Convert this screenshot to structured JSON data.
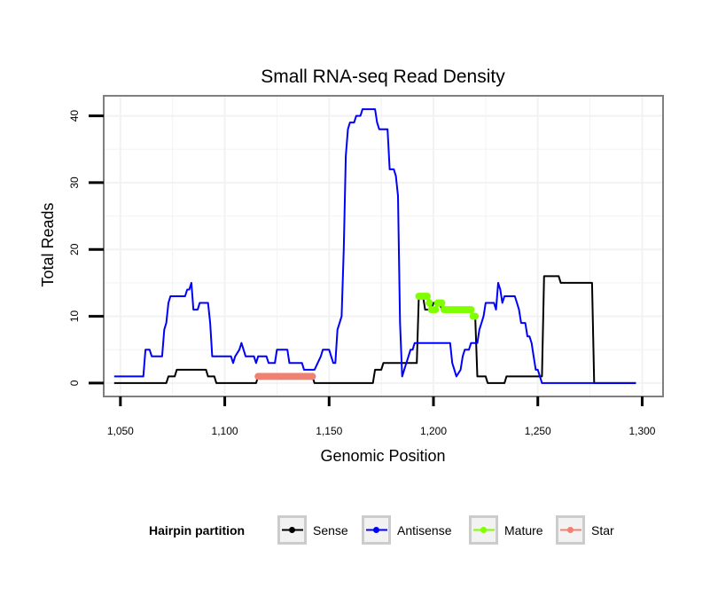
{
  "chart_data": {
    "type": "line",
    "title": "Small RNA-seq Read Density",
    "xlabel": "Genomic Position",
    "ylabel": "Total Reads",
    "xlim": [
      1042,
      1310
    ],
    "ylim": [
      -2,
      43
    ],
    "x_ticks": [
      1050,
      1100,
      1150,
      1200,
      1250,
      1300
    ],
    "x_tick_labels": [
      "1,050",
      "1,100",
      "1,150",
      "1,200",
      "1,250",
      "1,300"
    ],
    "y_ticks": [
      0,
      10,
      20,
      30,
      40
    ],
    "y_tick_labels": [
      "0",
      "10",
      "20",
      "30",
      "40"
    ],
    "grid": true,
    "legend": {
      "title": "Hairpin partition",
      "position": "bottom",
      "entries": [
        "Sense",
        "Antisense",
        "Mature",
        "Star"
      ]
    },
    "series": [
      {
        "name": "Sense",
        "color": "#000000",
        "points": [
          [
            1047,
            0
          ],
          [
            1072,
            0
          ],
          [
            1073,
            1
          ],
          [
            1076,
            1
          ],
          [
            1077,
            2
          ],
          [
            1091,
            2
          ],
          [
            1092,
            1
          ],
          [
            1095,
            1
          ],
          [
            1096,
            0
          ],
          [
            1115,
            0
          ],
          [
            1116,
            1
          ],
          [
            1142,
            1
          ],
          [
            1143,
            0
          ],
          [
            1171,
            0
          ],
          [
            1172,
            2
          ],
          [
            1175,
            2
          ],
          [
            1176,
            3
          ],
          [
            1192,
            3
          ],
          [
            1193,
            13
          ],
          [
            1195,
            13
          ],
          [
            1196,
            11
          ],
          [
            1199,
            11
          ],
          [
            1200,
            12
          ],
          [
            1203,
            12
          ],
          [
            1204,
            11
          ],
          [
            1218,
            11
          ],
          [
            1219,
            10
          ],
          [
            1220,
            10
          ],
          [
            1221,
            1
          ],
          [
            1225,
            1
          ],
          [
            1226,
            0
          ],
          [
            1234,
            0
          ],
          [
            1235,
            1
          ],
          [
            1252,
            1
          ],
          [
            1253,
            16
          ],
          [
            1260,
            16
          ],
          [
            1261,
            15
          ],
          [
            1276,
            15
          ],
          [
            1277,
            0
          ],
          [
            1297,
            0
          ]
        ]
      },
      {
        "name": "Antisense",
        "color": "#0000ff",
        "points": [
          [
            1047,
            1
          ],
          [
            1061,
            1
          ],
          [
            1062,
            5
          ],
          [
            1064,
            5
          ],
          [
            1065,
            4
          ],
          [
            1070,
            4
          ],
          [
            1071,
            8
          ],
          [
            1072,
            9
          ],
          [
            1073,
            12
          ],
          [
            1074,
            13
          ],
          [
            1081,
            13
          ],
          [
            1082,
            14
          ],
          [
            1083,
            14
          ],
          [
            1084,
            15
          ],
          [
            1085,
            11
          ],
          [
            1087,
            11
          ],
          [
            1088,
            12
          ],
          [
            1092,
            12
          ],
          [
            1093,
            9
          ],
          [
            1094,
            4
          ],
          [
            1103,
            4
          ],
          [
            1104,
            3
          ],
          [
            1105,
            4
          ],
          [
            1107,
            5
          ],
          [
            1108,
            6
          ],
          [
            1109,
            5
          ],
          [
            1110,
            4
          ],
          [
            1114,
            4
          ],
          [
            1115,
            3
          ],
          [
            1116,
            4
          ],
          [
            1120,
            4
          ],
          [
            1121,
            3
          ],
          [
            1124,
            3
          ],
          [
            1125,
            5
          ],
          [
            1130,
            5
          ],
          [
            1131,
            3
          ],
          [
            1137,
            3
          ],
          [
            1138,
            2
          ],
          [
            1143,
            2
          ],
          [
            1146,
            4
          ],
          [
            1147,
            5
          ],
          [
            1150,
            5
          ],
          [
            1151,
            4
          ],
          [
            1152,
            3
          ],
          [
            1153,
            3
          ],
          [
            1154,
            8
          ],
          [
            1155,
            9
          ],
          [
            1156,
            10
          ],
          [
            1157,
            20
          ],
          [
            1158,
            34
          ],
          [
            1159,
            38
          ],
          [
            1160,
            39
          ],
          [
            1162,
            39
          ],
          [
            1163,
            40
          ],
          [
            1165,
            40
          ],
          [
            1166,
            41
          ],
          [
            1172,
            41
          ],
          [
            1173,
            39
          ],
          [
            1174,
            38
          ],
          [
            1178,
            38
          ],
          [
            1179,
            32
          ],
          [
            1181,
            32
          ],
          [
            1182,
            31
          ],
          [
            1183,
            28
          ],
          [
            1184,
            9
          ],
          [
            1185,
            1
          ],
          [
            1186,
            2
          ],
          [
            1187,
            3
          ],
          [
            1188,
            4
          ],
          [
            1189,
            5
          ],
          [
            1190,
            5
          ],
          [
            1191,
            6
          ],
          [
            1208,
            6
          ],
          [
            1209,
            3
          ],
          [
            1210,
            2
          ],
          [
            1211,
            1
          ],
          [
            1213,
            2
          ],
          [
            1214,
            4
          ],
          [
            1215,
            5
          ],
          [
            1217,
            5
          ],
          [
            1218,
            6
          ],
          [
            1221,
            6
          ],
          [
            1222,
            8
          ],
          [
            1223,
            9
          ],
          [
            1224,
            10
          ],
          [
            1225,
            12
          ],
          [
            1229,
            12
          ],
          [
            1230,
            11
          ],
          [
            1231,
            15
          ],
          [
            1232,
            14
          ],
          [
            1233,
            12
          ],
          [
            1234,
            13
          ],
          [
            1239,
            13
          ],
          [
            1240,
            12
          ],
          [
            1241,
            11
          ],
          [
            1242,
            9
          ],
          [
            1244,
            9
          ],
          [
            1245,
            7
          ],
          [
            1246,
            7
          ],
          [
            1247,
            6
          ],
          [
            1248,
            4
          ],
          [
            1249,
            2
          ],
          [
            1250,
            2
          ],
          [
            1251,
            1
          ],
          [
            1252,
            0
          ],
          [
            1297,
            0
          ]
        ]
      },
      {
        "name": "Mature",
        "color": "#7fff00",
        "points": [
          [
            1193,
            13
          ],
          [
            1194,
            13
          ],
          [
            1195,
            13
          ],
          [
            1196,
            13
          ],
          [
            1197,
            13
          ],
          [
            1198,
            12
          ],
          [
            1199,
            11
          ],
          [
            1200,
            11
          ],
          [
            1201,
            11
          ],
          [
            1202,
            12
          ],
          [
            1203,
            12
          ],
          [
            1204,
            12
          ],
          [
            1205,
            11
          ],
          [
            1206,
            11
          ],
          [
            1207,
            11
          ],
          [
            1208,
            11
          ],
          [
            1209,
            11
          ],
          [
            1210,
            11
          ],
          [
            1211,
            11
          ],
          [
            1212,
            11
          ],
          [
            1213,
            11
          ],
          [
            1214,
            11
          ],
          [
            1215,
            11
          ],
          [
            1216,
            11
          ],
          [
            1217,
            11
          ],
          [
            1218,
            11
          ],
          [
            1219,
            10
          ],
          [
            1220,
            10
          ]
        ]
      },
      {
        "name": "Star",
        "color": "#f08070",
        "points": [
          [
            1116,
            1
          ],
          [
            1117,
            1
          ],
          [
            1118,
            1
          ],
          [
            1119,
            1
          ],
          [
            1120,
            1
          ],
          [
            1121,
            1
          ],
          [
            1122,
            1
          ],
          [
            1123,
            1
          ],
          [
            1124,
            1
          ],
          [
            1125,
            1
          ],
          [
            1126,
            1
          ],
          [
            1127,
            1
          ],
          [
            1128,
            1
          ],
          [
            1129,
            1
          ],
          [
            1130,
            1
          ],
          [
            1131,
            1
          ],
          [
            1132,
            1
          ],
          [
            1133,
            1
          ],
          [
            1134,
            1
          ],
          [
            1135,
            1
          ],
          [
            1136,
            1
          ],
          [
            1137,
            1
          ],
          [
            1138,
            1
          ],
          [
            1139,
            1
          ],
          [
            1140,
            1
          ],
          [
            1141,
            1
          ],
          [
            1142,
            1
          ]
        ]
      }
    ]
  }
}
